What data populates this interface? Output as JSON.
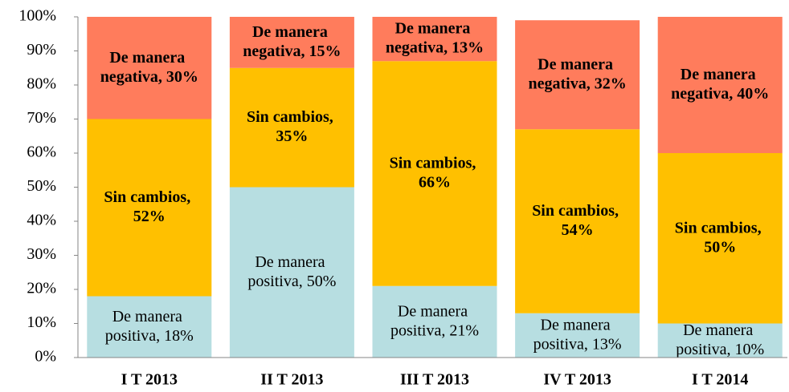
{
  "chart_data": {
    "type": "stacked_bar",
    "categories": [
      "I T 2013",
      "II T 2013",
      "III T 2013",
      "IV T 2013",
      "I T 2014"
    ],
    "series": [
      {
        "name": "De manera positiva",
        "color": "#b7dee1",
        "label_weight": "normal",
        "values": [
          18,
          50,
          21,
          13,
          10
        ],
        "value_labels": [
          "De manera positiva, 18%",
          "De manera positiva, 50%",
          "De manera positiva, 21%",
          "De manera positiva, 13%",
          "De manera positiva, 10%"
        ]
      },
      {
        "name": "Sin cambios",
        "color": "#ffc000",
        "label_weight": "bold",
        "values": [
          52,
          35,
          66,
          54,
          50
        ],
        "value_labels": [
          "Sin cambios, 52%",
          "Sin cambios, 35%",
          "Sin cambios, 66%",
          "Sin cambios, 54%",
          "Sin cambios, 50%"
        ]
      },
      {
        "name": "De manera negativa",
        "color": "#ff7c5c",
        "label_weight": "bold",
        "values": [
          30,
          15,
          13,
          32,
          40
        ],
        "value_labels": [
          "De manera negativa, 30%",
          "De manera negativa, 15%",
          "De manera negativa, 13%",
          "De manera negativa, 32%",
          "De manera negativa, 40%"
        ]
      }
    ],
    "ylim": [
      0,
      100
    ],
    "yticks": [
      {
        "value": 0,
        "label": "0%"
      },
      {
        "value": 10,
        "label": "10%"
      },
      {
        "value": 20,
        "label": "20%"
      },
      {
        "value": 30,
        "label": "30%"
      },
      {
        "value": 40,
        "label": "40%"
      },
      {
        "value": 50,
        "label": "50%"
      },
      {
        "value": 60,
        "label": "60%"
      },
      {
        "value": 70,
        "label": "70%"
      },
      {
        "value": 80,
        "label": "80%"
      },
      {
        "value": 90,
        "label": "90%"
      },
      {
        "value": 100,
        "label": "100%"
      }
    ]
  }
}
